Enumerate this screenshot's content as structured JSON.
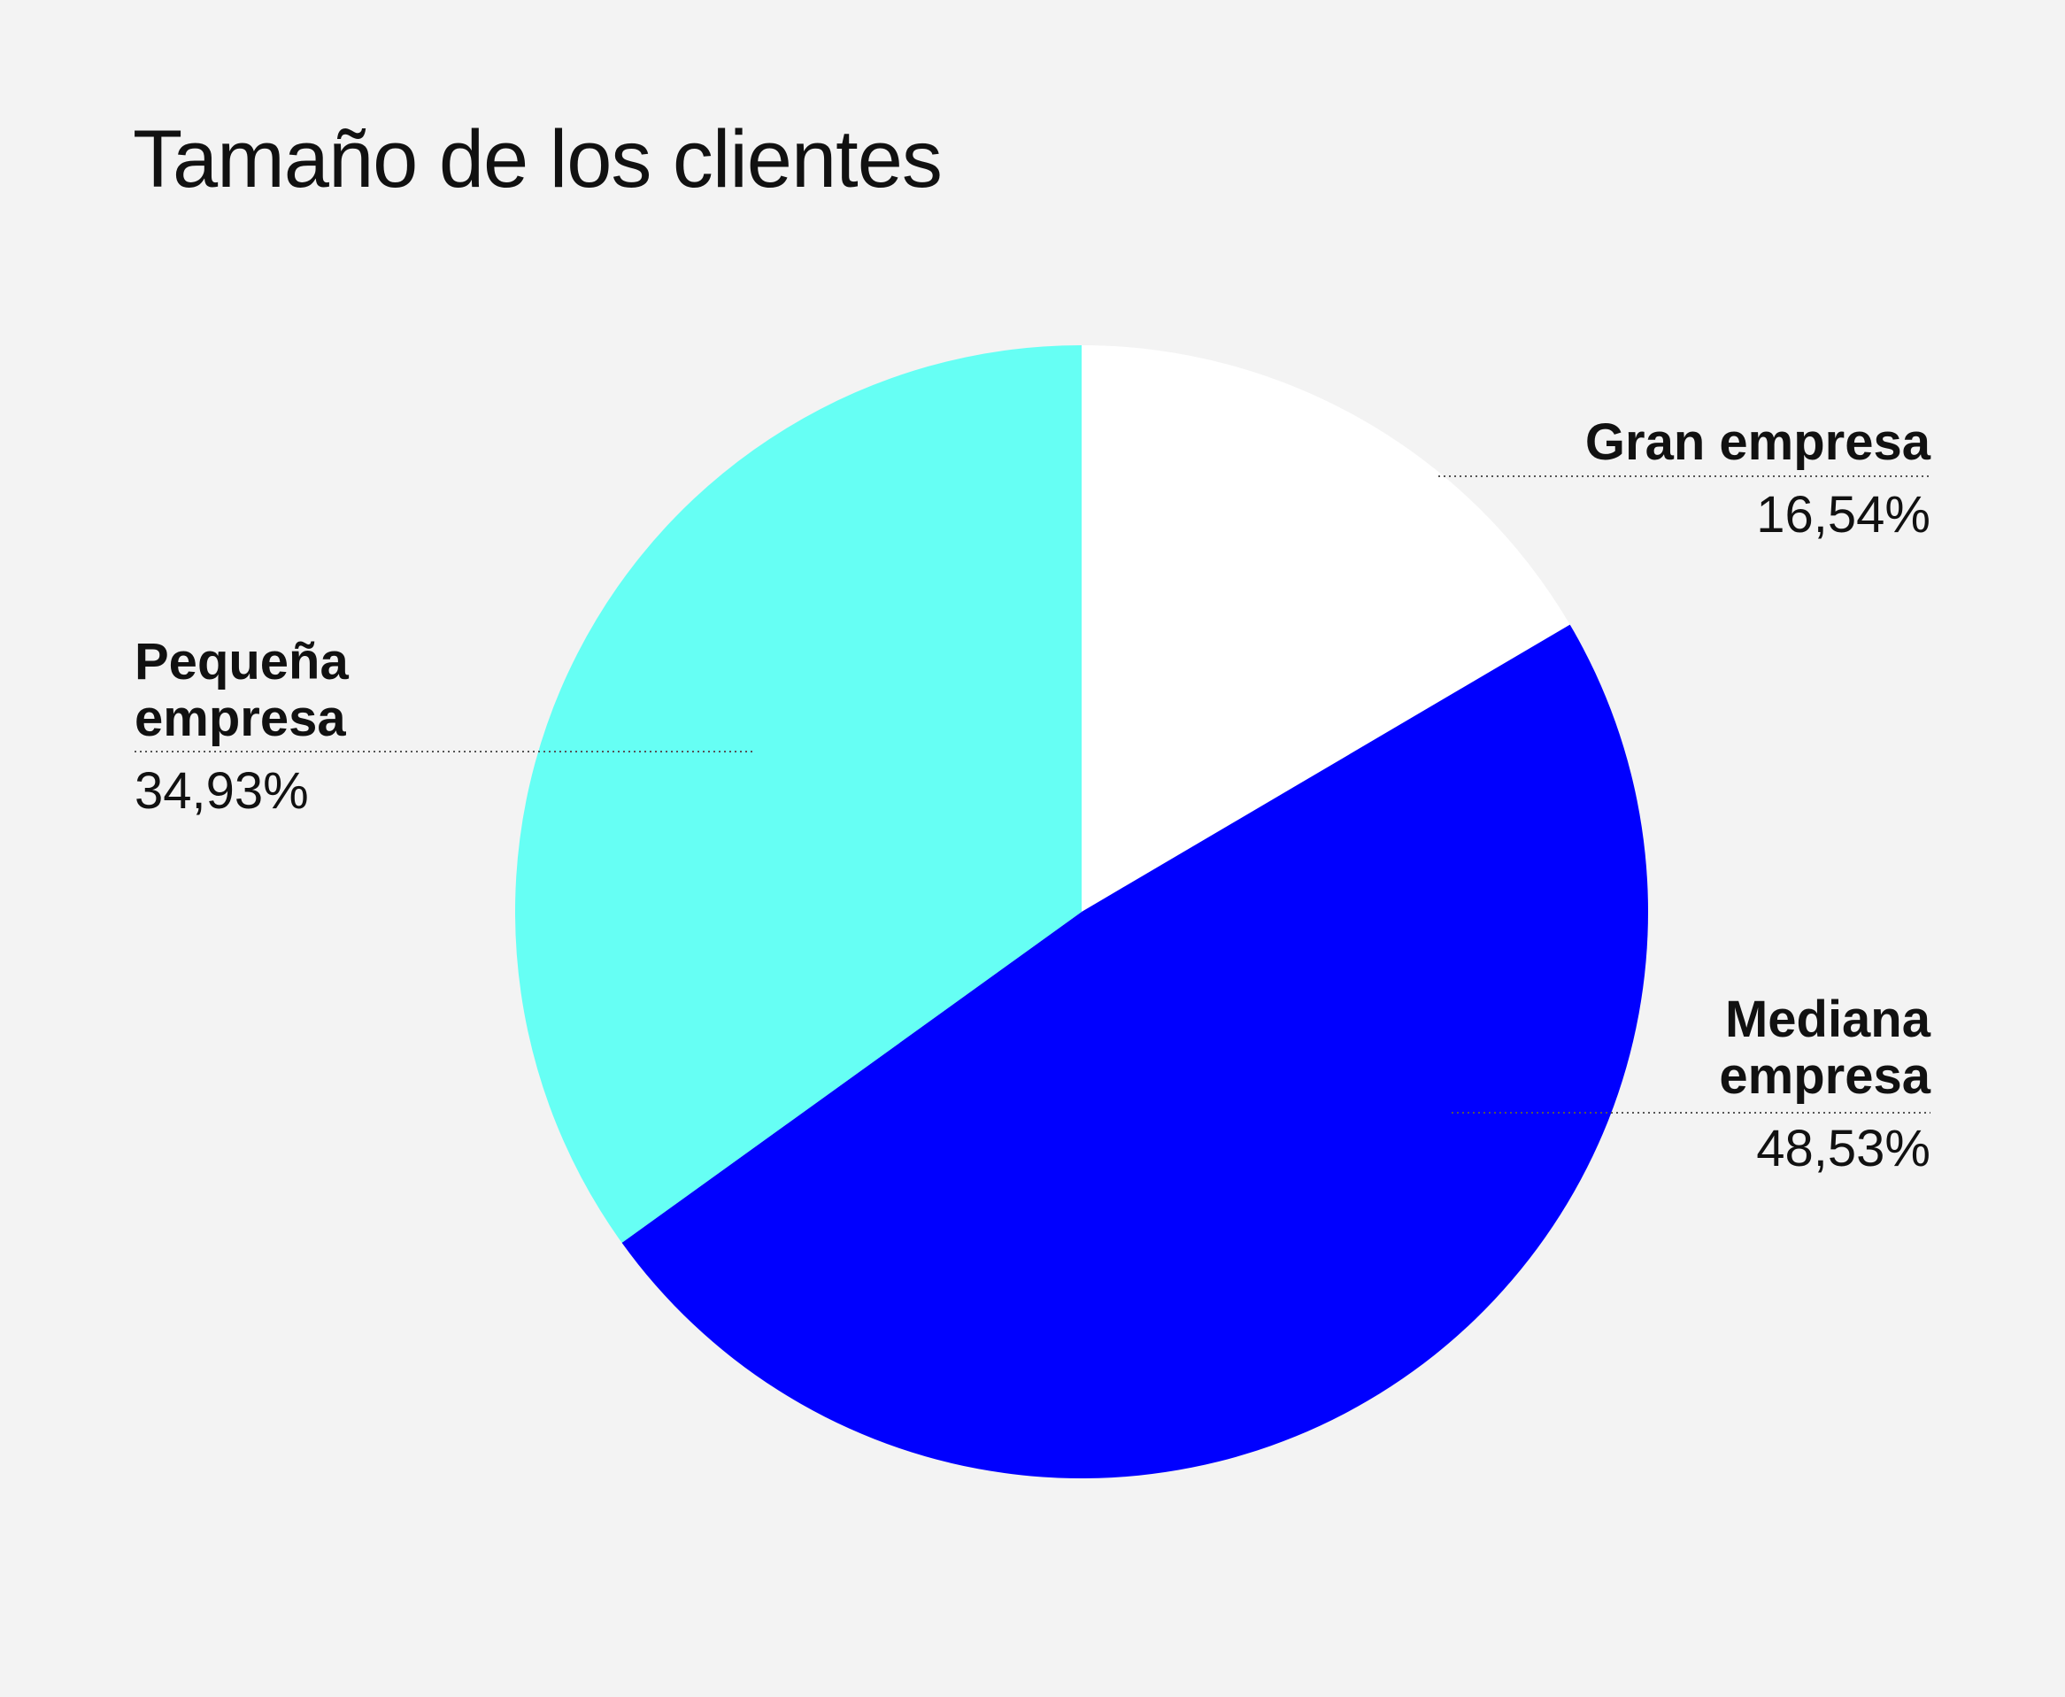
{
  "chart_data": {
    "type": "pie",
    "title": "Tamaño de los clientes",
    "slices": [
      {
        "name": "Gran empresa",
        "label_lines": [
          "Gran empresa"
        ],
        "value": 16.54,
        "value_label": "16,54%",
        "color": "#ffffff"
      },
      {
        "name": "Mediana empresa",
        "label_lines": [
          "Mediana",
          "empresa"
        ],
        "value": 48.53,
        "value_label": "48,53%",
        "color": "#0000ff"
      },
      {
        "name": "Pequeña empresa",
        "label_lines": [
          "Pequeña",
          "empresa"
        ],
        "value": 34.93,
        "value_label": "34,93%",
        "color": "#66fff4"
      }
    ],
    "start": "12 o'clock",
    "direction": "clockwise",
    "legend": "none"
  },
  "colors": {
    "background": "#f3f3f3",
    "text": "#111111",
    "leader_line": "#555555"
  }
}
